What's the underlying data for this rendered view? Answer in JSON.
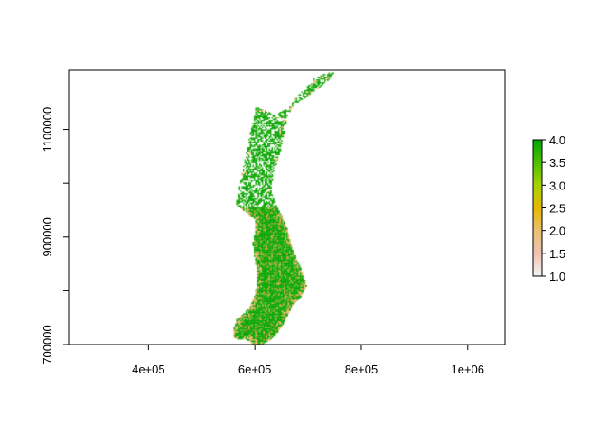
{
  "chart_data": {
    "type": "heatmap",
    "title": "",
    "xlabel": "",
    "ylabel": "",
    "xlim": [
      250000,
      1070000
    ],
    "ylim": [
      700000,
      1210000
    ],
    "x_ticks": [
      {
        "value": 400000,
        "label": "4e+05"
      },
      {
        "value": 600000,
        "label": "6e+05"
      },
      {
        "value": 800000,
        "label": "8e+05"
      },
      {
        "value": 1000000,
        "label": "1e+06"
      }
    ],
    "y_ticks": [
      {
        "value": 700000,
        "label": "700000"
      },
      {
        "value": 800000,
        "label": ""
      },
      {
        "value": 900000,
        "label": "900000"
      },
      {
        "value": 1000000,
        "label": ""
      },
      {
        "value": 1100000,
        "label": "1100000"
      }
    ],
    "legend": {
      "position": "right",
      "range": [
        1.0,
        4.0
      ],
      "ticks": [
        {
          "value": 1.0,
          "label": "1.0"
        },
        {
          "value": 1.5,
          "label": "1.5"
        },
        {
          "value": 2.0,
          "label": "2.0"
        },
        {
          "value": 2.5,
          "label": "2.5"
        },
        {
          "value": 3.0,
          "label": "3.0"
        },
        {
          "value": 3.5,
          "label": "3.5"
        },
        {
          "value": 4.0,
          "label": "4.0"
        }
      ],
      "colors": [
        "#f2f2f2",
        "#efc2b3",
        "#eac16e",
        "#e6b800",
        "#a7d300",
        "#4fc000",
        "#00a600"
      ]
    },
    "raster_outline": {
      "description_units": "data units (x easting, y northing)",
      "polygon": [
        [
          725000,
          1203000
        ],
        [
          748000,
          1208000
        ],
        [
          738000,
          1195000
        ],
        [
          712000,
          1172000
        ],
        [
          695000,
          1162000
        ],
        [
          672000,
          1148000
        ],
        [
          658000,
          1125000
        ],
        [
          655000,
          1098000
        ],
        [
          650000,
          1075000
        ],
        [
          642000,
          1045000
        ],
        [
          632000,
          1018000
        ],
        [
          630000,
          988000
        ],
        [
          638000,
          962000
        ],
        [
          650000,
          940000
        ],
        [
          660000,
          915000
        ],
        [
          665000,
          895000
        ],
        [
          670000,
          875000
        ],
        [
          680000,
          855000
        ],
        [
          690000,
          830000
        ],
        [
          695000,
          810000
        ],
        [
          686000,
          792000
        ],
        [
          670000,
          775000
        ],
        [
          660000,
          755000
        ],
        [
          650000,
          735000
        ],
        [
          630000,
          712000
        ],
        [
          610000,
          700000
        ],
        [
          595000,
          702000
        ],
        [
          585000,
          710000
        ],
        [
          560000,
          713000
        ],
        [
          558000,
          730000
        ],
        [
          565000,
          748000
        ],
        [
          580000,
          760000
        ],
        [
          590000,
          772000
        ],
        [
          598000,
          792000
        ],
        [
          603000,
          815000
        ],
        [
          602000,
          840000
        ],
        [
          598000,
          865000
        ],
        [
          595000,
          890000
        ],
        [
          600000,
          915000
        ],
        [
          598000,
          935000
        ],
        [
          580000,
          950000
        ],
        [
          563000,
          960000
        ],
        [
          568000,
          990000
        ],
        [
          575000,
          1020000
        ],
        [
          582000,
          1055000
        ],
        [
          588000,
          1085000
        ],
        [
          595000,
          1115000
        ],
        [
          600000,
          1142000
        ],
        [
          618000,
          1137000
        ],
        [
          640000,
          1130000
        ],
        [
          660000,
          1140000
        ],
        [
          680000,
          1165000
        ],
        [
          700000,
          1185000
        ],
        [
          712000,
          1198000
        ]
      ]
    }
  }
}
